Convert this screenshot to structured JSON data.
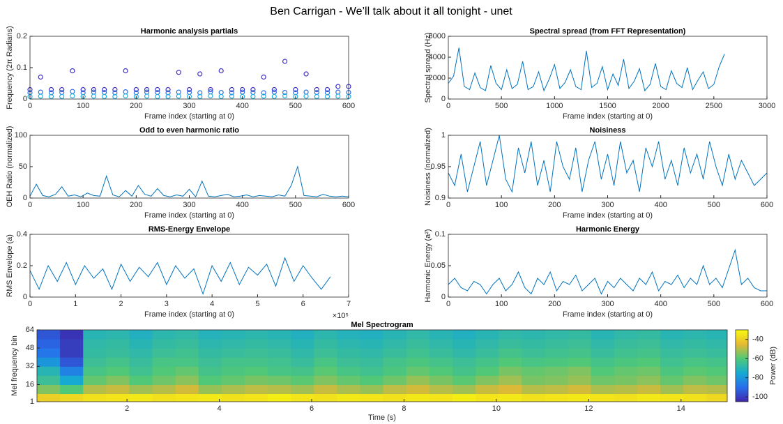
{
  "title": "Ben Carrigan - We’ll talk about it all tonight - unet",
  "chart_data": [
    {
      "type": "scatter",
      "title": "Harmonic analysis partials",
      "xlabel": "Frame index (starting at 0)",
      "ylabel": "Frequency (2π Radians)",
      "xlim": [
        0,
        600
      ],
      "xticks": [
        0,
        100,
        200,
        300,
        400,
        500,
        600
      ],
      "ylim": [
        0,
        0.2
      ],
      "yticks": [
        0,
        0.1,
        0.2
      ],
      "x": [
        0,
        20,
        40,
        60,
        80,
        100,
        120,
        140,
        160,
        180,
        200,
        220,
        240,
        260,
        280,
        300,
        320,
        340,
        360,
        380,
        400,
        420,
        440,
        460,
        480,
        500,
        520,
        540,
        560,
        580,
        600
      ],
      "series": [
        {
          "color": "#3b2fc9",
          "values": [
            0.03,
            0.07,
            0.03,
            0.03,
            0.09,
            0.03,
            0.03,
            0.03,
            0.03,
            0.09,
            0.03,
            0.03,
            0.03,
            0.03,
            0.085,
            0.03,
            0.08,
            0.03,
            0.09,
            0.03,
            0.03,
            0.03,
            0.07,
            0.03,
            0.12,
            0.03,
            0.08,
            0.03,
            0.03,
            0.04,
            0.04
          ]
        },
        {
          "color": "#2f6fe0",
          "values": [
            0.02,
            0.022,
            0.02,
            0.021,
            0.024,
            0.02,
            0.022,
            0.021,
            0.02,
            0.023,
            0.02,
            0.022,
            0.021,
            0.02,
            0.022,
            0.021,
            0.02,
            0.023,
            0.021,
            0.02,
            0.022,
            0.021,
            0.02,
            0.022,
            0.021,
            0.02,
            0.022,
            0.021,
            0.02,
            0.022,
            0.021
          ]
        },
        {
          "color": "#1fb0e0",
          "values": [
            0.008,
            0.009,
            0.008,
            0.008,
            0.01,
            0.008,
            0.009,
            0.008,
            0.008,
            0.01,
            0.008,
            0.009,
            0.008,
            0.008,
            0.009,
            0.008,
            0.008,
            0.01,
            0.008,
            0.009,
            0.008,
            0.008,
            0.009,
            0.008,
            0.01,
            0.008,
            0.009,
            0.008,
            0.008,
            0.009,
            0.008
          ]
        }
      ]
    },
    {
      "type": "line",
      "title": "Spectral spread (from FFT Representation)",
      "xlabel": "Frame index (starting at 0)",
      "ylabel": "Spectral spread (Hz)",
      "xlim": [
        0,
        3000
      ],
      "xticks": [
        0,
        500,
        1000,
        1500,
        2000,
        2500,
        3000
      ],
      "ylim": [
        0,
        6000
      ],
      "yticks": [
        0,
        2000,
        4000,
        6000
      ],
      "color": "#0072bd",
      "x": [
        0,
        50,
        100,
        150,
        200,
        250,
        300,
        350,
        400,
        450,
        500,
        550,
        600,
        650,
        700,
        750,
        800,
        850,
        900,
        950,
        1000,
        1050,
        1100,
        1150,
        1200,
        1250,
        1300,
        1350,
        1400,
        1450,
        1500,
        1550,
        1600,
        1650,
        1700,
        1750,
        1800,
        1850,
        1900,
        1950,
        2000,
        2050,
        2100,
        2150,
        2200,
        2250,
        2300,
        2350,
        2400,
        2450,
        2500,
        2550,
        2600
      ],
      "values": [
        1500,
        2200,
        4900,
        1200,
        900,
        2500,
        1100,
        800,
        3200,
        1500,
        900,
        2800,
        1000,
        1400,
        3600,
        900,
        1200,
        2600,
        800,
        1900,
        3300,
        1000,
        1600,
        2800,
        1200,
        900,
        4600,
        1100,
        1500,
        3100,
        900,
        2400,
        1300,
        3800,
        1000,
        1700,
        2900,
        800,
        1400,
        3400,
        1200,
        900,
        2700,
        1500,
        1100,
        3000,
        900,
        1800,
        2600,
        1000,
        1400,
        3100,
        4300
      ]
    },
    {
      "type": "line",
      "title": "Odd to even harmonic ratio",
      "xlabel": "Frame index (starting at 0)",
      "ylabel": "OEH Ratio (normalized)",
      "xlim": [
        0,
        600
      ],
      "xticks": [
        0,
        100,
        200,
        300,
        400,
        500,
        600
      ],
      "ylim": [
        0,
        100
      ],
      "yticks": [
        0,
        50,
        100
      ],
      "color": "#0072bd",
      "x": [
        0,
        12,
        24,
        36,
        48,
        60,
        72,
        84,
        96,
        108,
        120,
        132,
        144,
        156,
        168,
        180,
        192,
        204,
        216,
        228,
        240,
        252,
        264,
        276,
        288,
        300,
        312,
        324,
        336,
        348,
        360,
        372,
        384,
        396,
        408,
        420,
        432,
        444,
        456,
        468,
        480,
        492,
        504,
        516,
        528,
        540,
        552,
        564,
        576,
        588,
        600
      ],
      "values": [
        3,
        22,
        4,
        2,
        6,
        18,
        3,
        5,
        2,
        8,
        4,
        3,
        35,
        5,
        2,
        12,
        3,
        20,
        6,
        3,
        15,
        4,
        2,
        5,
        3,
        14,
        2,
        27,
        3,
        2,
        4,
        6,
        2,
        3,
        5,
        2,
        4,
        3,
        2,
        5,
        3,
        20,
        50,
        4,
        3,
        2,
        6,
        3,
        2,
        3,
        2
      ]
    },
    {
      "type": "line",
      "title": "Noisiness",
      "xlabel": "Frame index (starting at 0)",
      "ylabel": "Noisiness (normalized)",
      "xlim": [
        0,
        600
      ],
      "xticks": [
        0,
        100,
        200,
        300,
        400,
        500,
        600
      ],
      "ylim": [
        0.9,
        1
      ],
      "yticks": [
        0.9,
        0.95,
        1
      ],
      "color": "#0072bd",
      "x": [
        0,
        12,
        24,
        36,
        48,
        60,
        72,
        84,
        96,
        108,
        120,
        132,
        144,
        156,
        168,
        180,
        192,
        204,
        216,
        228,
        240,
        252,
        264,
        276,
        288,
        300,
        312,
        324,
        336,
        348,
        360,
        372,
        384,
        396,
        408,
        420,
        432,
        444,
        456,
        468,
        480,
        492,
        504,
        516,
        528,
        540,
        552,
        564,
        576,
        588,
        600
      ],
      "values": [
        0.94,
        0.92,
        0.97,
        0.91,
        0.95,
        0.99,
        0.92,
        0.96,
        1.0,
        0.93,
        0.91,
        0.98,
        0.94,
        0.99,
        0.92,
        0.96,
        0.91,
        0.99,
        0.95,
        0.93,
        0.98,
        0.91,
        0.96,
        0.99,
        0.93,
        0.97,
        0.92,
        0.99,
        0.94,
        0.96,
        0.91,
        0.98,
        0.95,
        0.99,
        0.93,
        0.96,
        0.92,
        0.98,
        0.94,
        0.97,
        0.93,
        0.99,
        0.95,
        0.92,
        0.97,
        0.93,
        0.96,
        0.94,
        0.92,
        0.93,
        0.94
      ]
    },
    {
      "type": "line",
      "title": "RMS-Energy Envelope",
      "xlabel": "Frame index (starting at 0)",
      "ylabel": "RMS Envelope (a)",
      "x_exponent": "×10⁵",
      "xlim": [
        0,
        700000
      ],
      "xticks": [
        0,
        {
          "value": 100000,
          "label": "1"
        },
        {
          "value": 200000,
          "label": "2"
        },
        {
          "value": 300000,
          "label": "3"
        },
        {
          "value": 400000,
          "label": "4"
        },
        {
          "value": 500000,
          "label": "5"
        },
        {
          "value": 600000,
          "label": "6"
        },
        {
          "value": 700000,
          "label": "7"
        }
      ],
      "ylim": [
        0,
        0.4
      ],
      "yticks": [
        0,
        0.2,
        0.4
      ],
      "color": "#0072bd",
      "x": [
        0,
        20000,
        40000,
        60000,
        80000,
        100000,
        120000,
        140000,
        160000,
        180000,
        200000,
        220000,
        240000,
        260000,
        280000,
        300000,
        320000,
        340000,
        360000,
        380000,
        400000,
        420000,
        440000,
        460000,
        480000,
        500000,
        520000,
        540000,
        560000,
        580000,
        600000,
        620000,
        640000,
        660000
      ],
      "values": [
        0.17,
        0.05,
        0.2,
        0.1,
        0.22,
        0.08,
        0.2,
        0.12,
        0.18,
        0.05,
        0.21,
        0.1,
        0.19,
        0.13,
        0.22,
        0.08,
        0.2,
        0.12,
        0.18,
        0.02,
        0.2,
        0.1,
        0.22,
        0.08,
        0.19,
        0.14,
        0.21,
        0.07,
        0.25,
        0.1,
        0.2,
        0.12,
        0.05,
        0.13
      ]
    },
    {
      "type": "line",
      "title": "Harmonic Energy",
      "xlabel": "Frame index (starting at 0)",
      "ylabel": "Harmonic Energy (a²)",
      "xlim": [
        0,
        600
      ],
      "xticks": [
        0,
        100,
        200,
        300,
        400,
        500,
        600
      ],
      "ylim": [
        0,
        0.1
      ],
      "yticks": [
        0,
        0.05,
        0.1
      ],
      "color": "#0072bd",
      "x": [
        0,
        12,
        24,
        36,
        48,
        60,
        72,
        84,
        96,
        108,
        120,
        132,
        144,
        156,
        168,
        180,
        192,
        204,
        216,
        228,
        240,
        252,
        264,
        276,
        288,
        300,
        312,
        324,
        336,
        348,
        360,
        372,
        384,
        396,
        408,
        420,
        432,
        444,
        456,
        468,
        480,
        492,
        504,
        516,
        528,
        540,
        552,
        564,
        576,
        588,
        600
      ],
      "values": [
        0.02,
        0.03,
        0.015,
        0.01,
        0.025,
        0.02,
        0.005,
        0.02,
        0.03,
        0.01,
        0.02,
        0.04,
        0.015,
        0.005,
        0.03,
        0.02,
        0.04,
        0.01,
        0.025,
        0.02,
        0.035,
        0.01,
        0.02,
        0.03,
        0.005,
        0.025,
        0.015,
        0.03,
        0.02,
        0.01,
        0.03,
        0.02,
        0.04,
        0.01,
        0.025,
        0.02,
        0.035,
        0.015,
        0.03,
        0.02,
        0.05,
        0.02,
        0.03,
        0.015,
        0.045,
        0.075,
        0.02,
        0.03,
        0.015,
        0.01,
        0.01
      ]
    },
    {
      "type": "heatmap",
      "title": "Mel Spectrogram",
      "xlabel": "Time (s)",
      "ylabel": "Mel frequency bin",
      "colorbar_label": "Power (dB)",
      "colormap": "parula",
      "xlim": [
        0.05,
        15
      ],
      "xticks": [
        2,
        4,
        6,
        8,
        10,
        12,
        14
      ],
      "ylim": [
        1,
        64
      ],
      "yticks": [
        1,
        16,
        32,
        48,
        64
      ],
      "clim": [
        -105,
        -30
      ],
      "cticks": [
        -40,
        -60,
        -80,
        -100
      ],
      "x": [
        0.3,
        0.8,
        1.3,
        1.8,
        2.3,
        2.8,
        3.3,
        3.8,
        4.3,
        4.8,
        5.3,
        5.8,
        6.3,
        6.8,
        7.3,
        7.8,
        8.3,
        8.8,
        9.3,
        9.8,
        10.3,
        10.8,
        11.3,
        11.8,
        12.3,
        12.8,
        13.3,
        13.8,
        14.3,
        14.8
      ],
      "y": [
        4,
        12,
        20,
        28,
        36,
        44,
        52,
        60
      ],
      "z": [
        [
          -40,
          -38,
          -36,
          -35,
          -34,
          -36,
          -35,
          -34,
          -36,
          -35,
          -33,
          -35,
          -36,
          -34,
          -35,
          -36,
          -34,
          -35,
          -33,
          -35,
          -34,
          -36,
          -35,
          -34,
          -35,
          -36,
          -34,
          -35,
          -36,
          -38
        ],
        [
          -55,
          -60,
          -50,
          -48,
          -52,
          -50,
          -47,
          -53,
          -51,
          -49,
          -50,
          -52,
          -48,
          -51,
          -53,
          -49,
          -47,
          -50,
          -52,
          -48,
          -46,
          -50,
          -49,
          -47,
          -51,
          -50,
          -48,
          -52,
          -49,
          -50
        ],
        [
          -65,
          -75,
          -58,
          -55,
          -60,
          -57,
          -54,
          -60,
          -58,
          -56,
          -57,
          -59,
          -55,
          -58,
          -60,
          -57,
          -53,
          -56,
          -59,
          -55,
          -52,
          -56,
          -55,
          -53,
          -57,
          -56,
          -54,
          -58,
          -55,
          -57
        ],
        [
          -70,
          -85,
          -62,
          -60,
          -64,
          -60,
          -58,
          -63,
          -61,
          -60,
          -62,
          -63,
          -59,
          -62,
          -64,
          -61,
          -58,
          -60,
          -63,
          -60,
          -56,
          -58,
          -57,
          -55,
          -60,
          -58,
          -57,
          -61,
          -59,
          -60
        ],
        [
          -80,
          -95,
          -65,
          -63,
          -66,
          -62,
          -62,
          -65,
          -63,
          -63,
          -64,
          -66,
          -62,
          -65,
          -66,
          -63,
          -61,
          -63,
          -65,
          -63,
          -60,
          -62,
          -61,
          -60,
          -63,
          -61,
          -60,
          -64,
          -62,
          -63
        ],
        [
          -88,
          -100,
          -67,
          -66,
          -68,
          -65,
          -64,
          -67,
          -66,
          -65,
          -66,
          -68,
          -65,
          -67,
          -68,
          -66,
          -64,
          -66,
          -68,
          -66,
          -63,
          -65,
          -64,
          -63,
          -66,
          -64,
          -63,
          -66,
          -65,
          -66
        ],
        [
          -92,
          -100,
          -68,
          -67,
          -70,
          -67,
          -66,
          -69,
          -68,
          -67,
          -68,
          -70,
          -67,
          -69,
          -70,
          -68,
          -66,
          -68,
          -70,
          -68,
          -66,
          -67,
          -66,
          -65,
          -68,
          -66,
          -65,
          -68,
          -67,
          -68
        ],
        [
          -95,
          -102,
          -70,
          -69,
          -72,
          -69,
          -68,
          -71,
          -70,
          -69,
          -70,
          -72,
          -69,
          -71,
          -72,
          -70,
          -68,
          -70,
          -72,
          -70,
          -68,
          -69,
          -68,
          -67,
          -70,
          -68,
          -67,
          -70,
          -69,
          -70
        ]
      ]
    }
  ]
}
